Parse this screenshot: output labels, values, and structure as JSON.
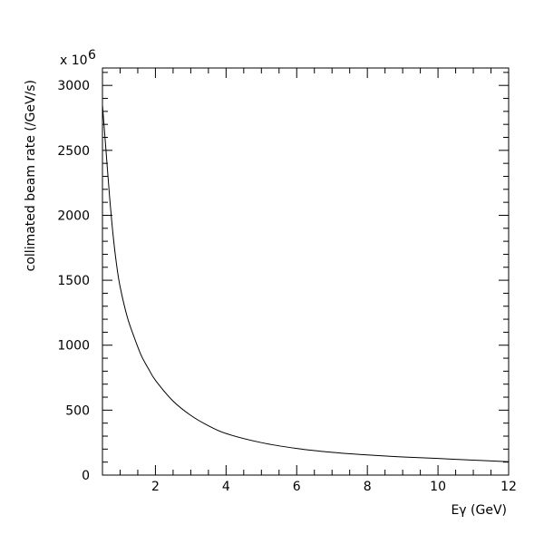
{
  "chart_data": {
    "type": "line",
    "title": "",
    "xlabel": "Eγ (GeV)",
    "ylabel": "collimated beam rate (/GeV/s)",
    "y_multiplier_label": "x 10",
    "y_multiplier_exponent": "6",
    "xlim": [
      0.5,
      12
    ],
    "ylim": [
      0,
      3000
    ],
    "grid": false,
    "legend": "none",
    "x_ticks": [
      {
        "value": 2,
        "label": "2"
      },
      {
        "value": 4,
        "label": "4"
      },
      {
        "value": 6,
        "label": "6"
      },
      {
        "value": 8,
        "label": "8"
      },
      {
        "value": 10,
        "label": "10"
      },
      {
        "value": 12,
        "label": "12"
      }
    ],
    "y_ticks": [
      {
        "value": 0,
        "label": "0"
      },
      {
        "value": 500,
        "label": "500"
      },
      {
        "value": 1000,
        "label": "1000"
      },
      {
        "value": 1500,
        "label": "1500"
      },
      {
        "value": 2000,
        "label": "2000"
      },
      {
        "value": 2500,
        "label": "2500"
      },
      {
        "value": 3000,
        "label": "3000"
      }
    ],
    "series": [
      {
        "x": [
          0.5,
          0.6,
          0.7,
          0.8,
          0.9,
          1.0,
          1.2,
          1.4,
          1.6,
          1.8,
          2.0,
          2.5,
          3.0,
          3.5,
          4.0,
          5.0,
          6.0,
          7.0,
          8.0,
          9.0,
          10.0,
          11.0,
          12.0
        ],
        "y": [
          2850,
          2500,
          2150,
          1850,
          1620,
          1450,
          1220,
          1060,
          920,
          820,
          730,
          570,
          460,
          380,
          320,
          250,
          205,
          175,
          155,
          140,
          128,
          115,
          103
        ]
      }
    ]
  }
}
